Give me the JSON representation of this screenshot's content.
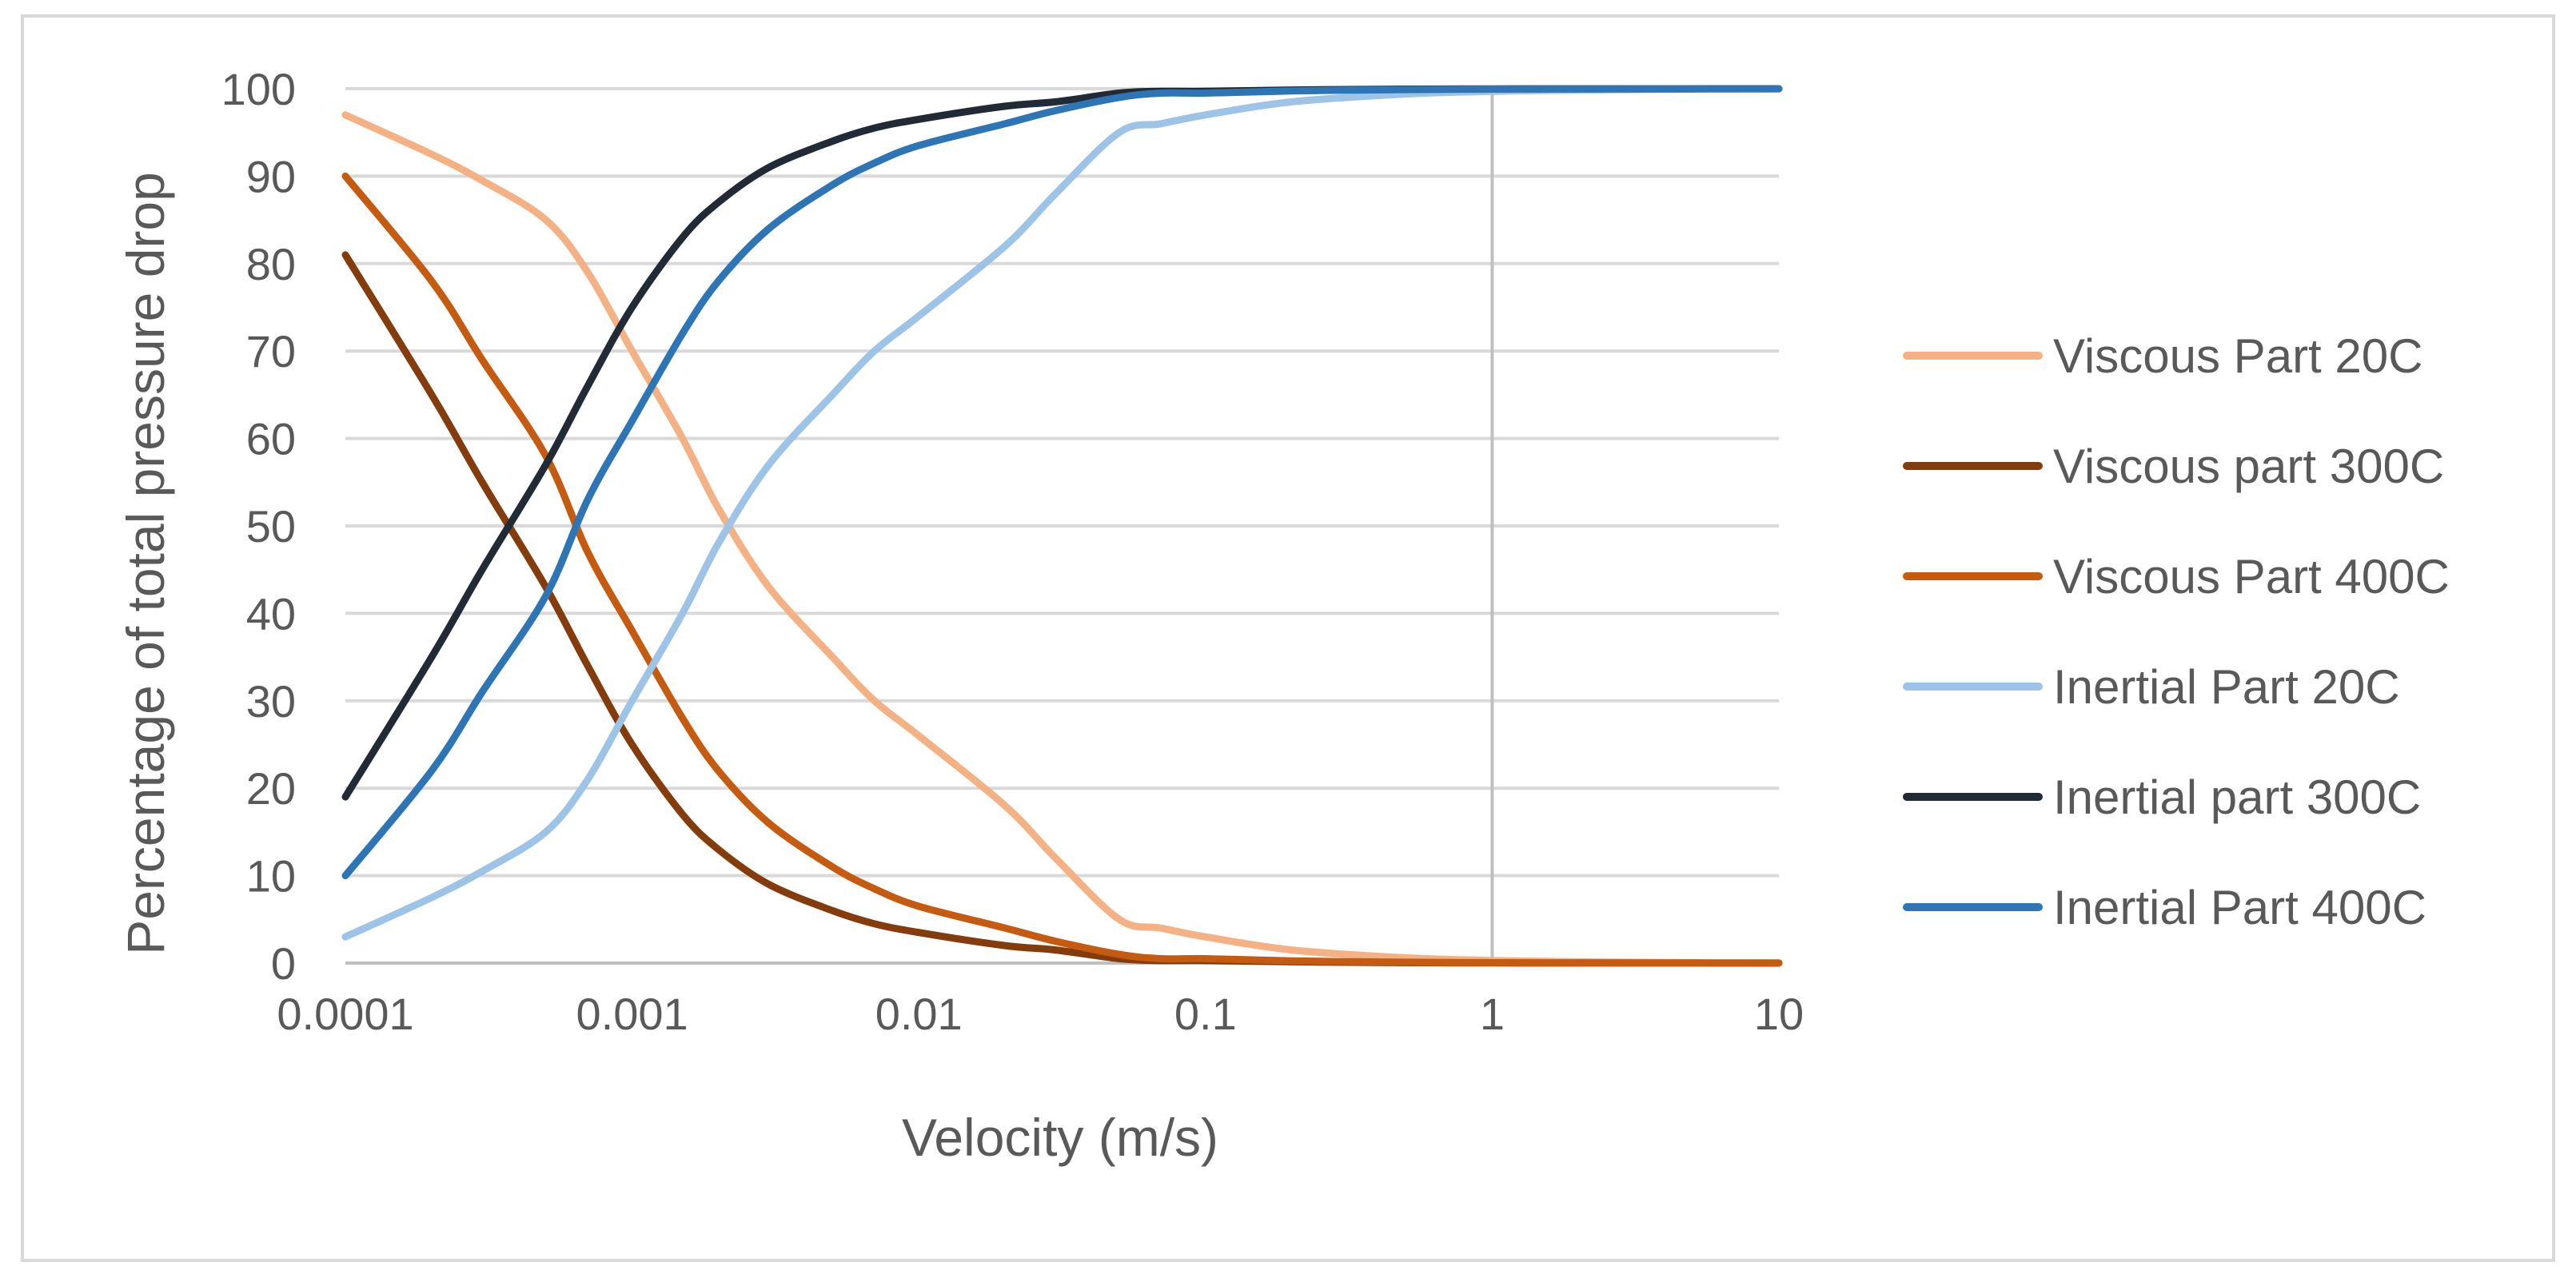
{
  "chart_data": {
    "type": "line",
    "title": "",
    "xlabel": "Velocity (m/s)",
    "ylabel": "Percentage of total pressure drop",
    "xscale": "log",
    "xlim": [
      0.0001,
      10
    ],
    "ylim": [
      0,
      100
    ],
    "x_ticks": [
      0.0001,
      0.001,
      0.01,
      0.1,
      1,
      10
    ],
    "x_tick_labels": [
      "0.0001",
      "0.001",
      "0.01",
      "0.1",
      "1",
      "10"
    ],
    "y_ticks": [
      0,
      10,
      20,
      30,
      40,
      50,
      60,
      70,
      80,
      90,
      100
    ],
    "y_tick_labels": [
      "0",
      "10",
      "20",
      "30",
      "40",
      "50",
      "60",
      "70",
      "80",
      "90",
      "100"
    ],
    "grid": "horizontal",
    "reference_line_x": 1,
    "legend_position": "right",
    "series": [
      {
        "name": "Viscous Part 20C",
        "color": "#F4B183",
        "x": [
          0.0001,
          0.0002,
          0.0003,
          0.0005,
          0.0007,
          0.001,
          0.0015,
          0.002,
          0.003,
          0.005,
          0.007,
          0.01,
          0.02,
          0.03,
          0.05,
          0.07,
          0.1,
          0.2,
          0.5,
          1,
          2,
          5,
          10
        ],
        "values": [
          97,
          92.5,
          89.5,
          85,
          79,
          70,
          60,
          52,
          43,
          35,
          30,
          26,
          18,
          12,
          5,
          4,
          3,
          1.5,
          0.6,
          0.3,
          0.15,
          0.05,
          0.02
        ]
      },
      {
        "name": "Viscous part 300C",
        "color": "#843C0C",
        "x": [
          0.0001,
          0.0002,
          0.0003,
          0.0005,
          0.0007,
          0.001,
          0.0015,
          0.002,
          0.003,
          0.005,
          0.007,
          0.01,
          0.02,
          0.03,
          0.05,
          0.07,
          0.1,
          0.2,
          0.5,
          1,
          2,
          5,
          10
        ],
        "values": [
          81,
          65,
          55,
          43,
          34,
          25,
          17,
          13,
          9,
          6,
          4.5,
          3.5,
          2,
          1.5,
          0.5,
          0.3,
          0.3,
          0.15,
          0.05,
          0.02,
          0.01,
          0.005,
          0.002
        ]
      },
      {
        "name": "Viscous Part 400C",
        "color": "#C55A11",
        "x": [
          0.0001,
          0.0002,
          0.0003,
          0.0005,
          0.0007,
          0.001,
          0.0015,
          0.002,
          0.003,
          0.005,
          0.007,
          0.01,
          0.02,
          0.03,
          0.05,
          0.07,
          0.1,
          0.2,
          0.5,
          1,
          2,
          5,
          10
        ],
        "values": [
          90,
          78,
          69,
          58,
          47,
          38,
          28,
          22,
          16,
          11,
          8.5,
          6.5,
          4,
          2.5,
          1,
          0.5,
          0.5,
          0.25,
          0.1,
          0.05,
          0.02,
          0.01,
          0.005
        ]
      },
      {
        "name": "Inertial Part 20C",
        "color": "#9DC3E6",
        "x": [
          0.0001,
          0.0002,
          0.0003,
          0.0005,
          0.0007,
          0.001,
          0.0015,
          0.002,
          0.003,
          0.005,
          0.007,
          0.01,
          0.02,
          0.03,
          0.05,
          0.07,
          0.1,
          0.2,
          0.5,
          1,
          2,
          5,
          10
        ],
        "values": [
          3,
          7.5,
          10.5,
          15,
          21,
          30,
          40,
          48,
          57,
          65,
          70,
          74,
          82,
          88,
          95,
          96,
          97,
          98.5,
          99.4,
          99.7,
          99.85,
          99.95,
          99.98
        ]
      },
      {
        "name": "Inertial part 300C",
        "color": "#222A35",
        "x": [
          0.0001,
          0.0002,
          0.0003,
          0.0005,
          0.0007,
          0.001,
          0.0015,
          0.002,
          0.003,
          0.005,
          0.007,
          0.01,
          0.02,
          0.03,
          0.05,
          0.07,
          0.1,
          0.2,
          0.5,
          1,
          2,
          5,
          10
        ],
        "values": [
          19,
          35,
          45,
          57,
          66,
          75,
          83,
          87,
          91,
          94,
          95.5,
          96.5,
          98,
          98.5,
          99.5,
          99.7,
          99.7,
          99.85,
          99.95,
          99.98,
          99.99,
          99.995,
          99.998
        ]
      },
      {
        "name": "Inertial Part 400C",
        "color": "#2E75B6",
        "x": [
          0.0001,
          0.0002,
          0.0003,
          0.0005,
          0.0007,
          0.001,
          0.0015,
          0.002,
          0.003,
          0.005,
          0.007,
          0.01,
          0.02,
          0.03,
          0.05,
          0.07,
          0.1,
          0.2,
          0.5,
          1,
          2,
          5,
          10
        ],
        "values": [
          10,
          22,
          31,
          42,
          53,
          62,
          72,
          78,
          84,
          89,
          91.5,
          93.5,
          96,
          97.5,
          99,
          99.5,
          99.5,
          99.75,
          99.9,
          99.95,
          99.98,
          99.99,
          99.995
        ]
      }
    ]
  }
}
